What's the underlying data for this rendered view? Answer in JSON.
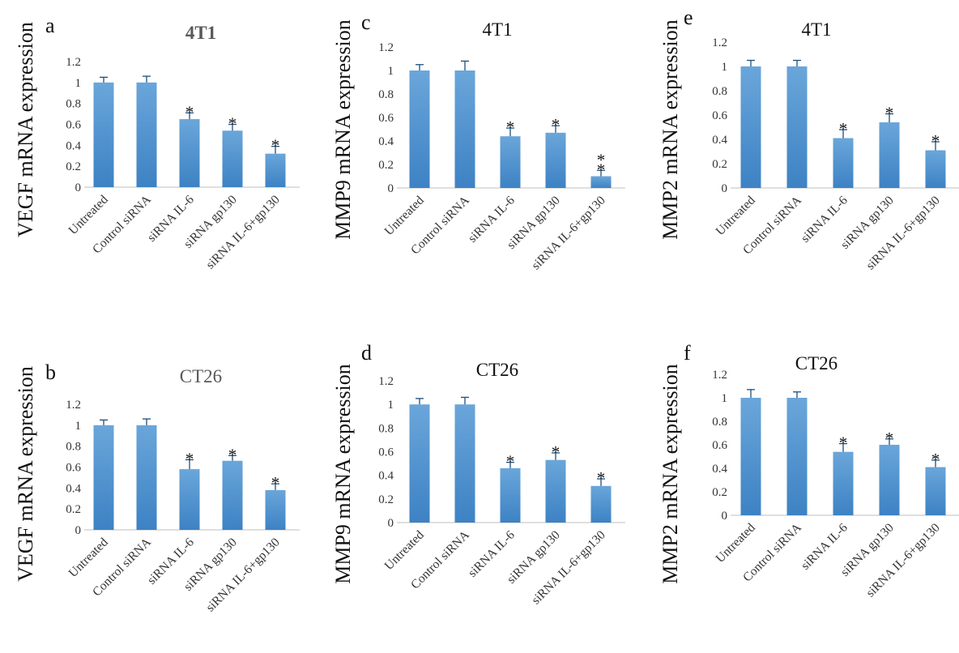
{
  "colors": {
    "bar_top": "#6aa6da",
    "bar_bottom": "#3d82c4",
    "error_bar": "#1f4e79",
    "text": "#333333"
  },
  "chart_data": [
    {
      "type": "bar",
      "panel": "a",
      "title": "4T1",
      "ylabel": "VEGF mRNA expression",
      "categories": [
        "Untreated",
        "Control siRNA",
        "siRNA IL-6",
        "siRNA gp130",
        "siRNA IL-6+gp130"
      ],
      "values": [
        1.0,
        1.0,
        0.65,
        0.54,
        0.32
      ],
      "errors": [
        0.05,
        0.06,
        0.06,
        0.06,
        0.07
      ],
      "significance": [
        "",
        "",
        "*",
        "*",
        "*"
      ],
      "yticks": [
        "0",
        "0.2",
        "0.4",
        "0.6",
        "0.8",
        "1",
        "1.2"
      ],
      "ylim": [
        0,
        1.2
      ]
    },
    {
      "type": "bar",
      "panel": "b",
      "title": "CT26",
      "ylabel": "VEGF mRNA expression",
      "categories": [
        "Untreated",
        "Control siRNA",
        "siRNA IL-6",
        "siRNA gp130",
        "siRNA IL-6+gp130"
      ],
      "values": [
        1.0,
        1.0,
        0.58,
        0.66,
        0.38
      ],
      "errors": [
        0.05,
        0.06,
        0.09,
        0.05,
        0.06
      ],
      "significance": [
        "",
        "",
        "*",
        "*",
        "*"
      ],
      "yticks": [
        "0",
        "0.2",
        "0.4",
        "0.6",
        "0.8",
        "1",
        "1.2"
      ],
      "ylim": [
        0,
        1.2
      ]
    },
    {
      "type": "bar",
      "panel": "c",
      "title": "4T1",
      "ylabel": "MMP9 mRNA expression",
      "categories": [
        "Untreated",
        "Control siRNA",
        "siRNA IL-6",
        "siRNA gp130",
        "siRNA IL-6+gp130"
      ],
      "values": [
        1.0,
        1.0,
        0.44,
        0.47,
        0.1
      ],
      "errors": [
        0.05,
        0.08,
        0.07,
        0.06,
        0.05
      ],
      "significance": [
        "",
        "",
        "*",
        "*",
        "**"
      ],
      "yticks": [
        "0",
        "0.2",
        "0.4",
        "0.6",
        "0.8",
        "1",
        "1.2"
      ],
      "ylim": [
        0,
        1.2
      ]
    },
    {
      "type": "bar",
      "panel": "d",
      "title": "CT26",
      "ylabel": "MMP9 mRNA expression",
      "categories": [
        "Untreated",
        "Control siRNA",
        "siRNA IL-6",
        "siRNA gp130",
        "siRNA IL-6+gp130"
      ],
      "values": [
        1.0,
        1.0,
        0.46,
        0.53,
        0.31
      ],
      "errors": [
        0.05,
        0.06,
        0.05,
        0.06,
        0.06
      ],
      "significance": [
        "",
        "",
        "*",
        "*",
        "*"
      ],
      "yticks": [
        "0",
        "0.2",
        "0.4",
        "0.6",
        "0.8",
        "1",
        "1.2"
      ],
      "ylim": [
        0,
        1.2
      ]
    },
    {
      "type": "bar",
      "panel": "e",
      "title": "4T1",
      "ylabel": "MMP2 mRNA expression",
      "categories": [
        "Untreated",
        "Control siRNA",
        "siRNA IL-6",
        "siRNA gp130",
        "siRNA IL-6+gp130"
      ],
      "values": [
        1.0,
        1.0,
        0.41,
        0.54,
        0.31
      ],
      "errors": [
        0.05,
        0.05,
        0.07,
        0.07,
        0.07
      ],
      "significance": [
        "",
        "",
        "*",
        "*",
        "*"
      ],
      "yticks": [
        "0",
        "0.2",
        "0.4",
        "0.6",
        "0.8",
        "1",
        "1.2"
      ],
      "ylim": [
        0,
        1.2
      ]
    },
    {
      "type": "bar",
      "panel": "f",
      "title": "CT26",
      "ylabel": "MMP2 mRNA expression",
      "categories": [
        "Untreated",
        "Control siRNA",
        "siRNA IL-6",
        "siRNA gp130",
        "siRNA IL-6+gp130"
      ],
      "values": [
        1.0,
        1.0,
        0.54,
        0.6,
        0.41
      ],
      "errors": [
        0.07,
        0.05,
        0.07,
        0.05,
        0.06
      ],
      "significance": [
        "",
        "",
        "*",
        "*",
        "*"
      ],
      "yticks": [
        "0",
        "0.2",
        "0.4",
        "0.6",
        "0.8",
        "1",
        "1.2"
      ],
      "ylim": [
        0,
        1.2
      ]
    }
  ]
}
